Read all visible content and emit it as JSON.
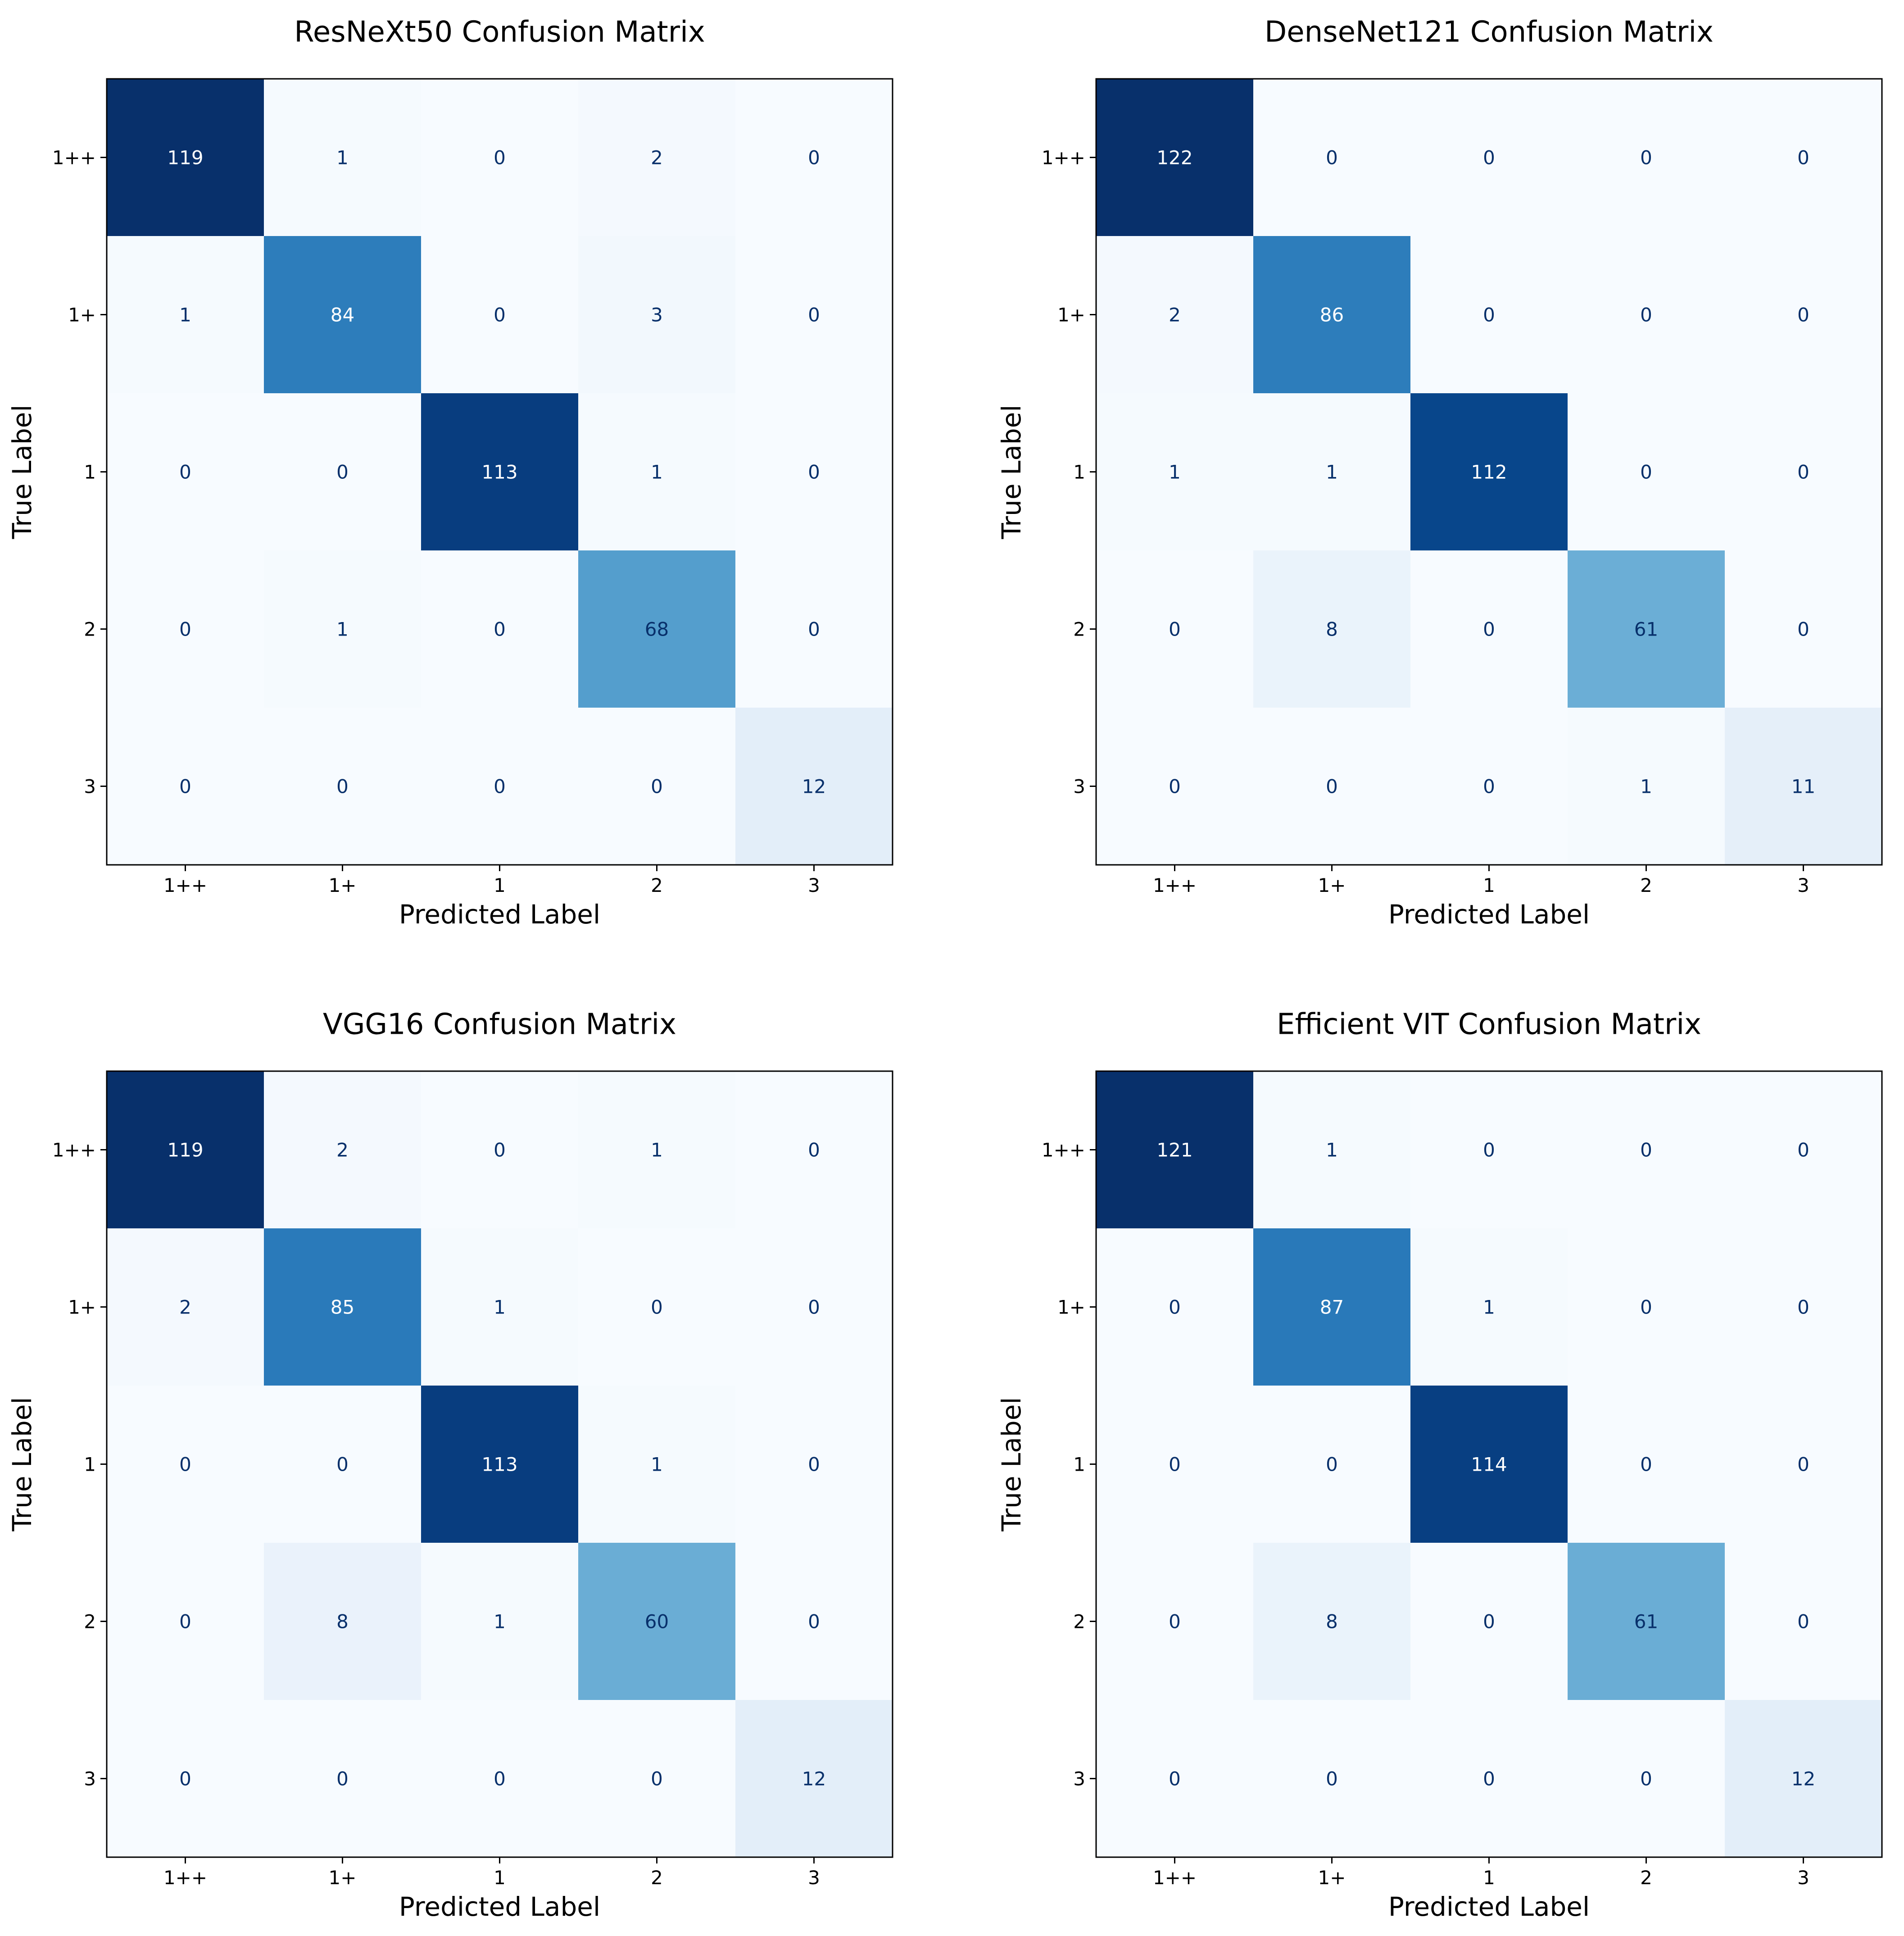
{
  "chart_data": [
    {
      "type": "heatmap",
      "title": "ResNeXt50 Confusion Matrix",
      "xlabel": "Predicted Label",
      "ylabel": "True Label",
      "x_categories": [
        "1++",
        "1+",
        "1",
        "2",
        "3"
      ],
      "y_categories": [
        "1++",
        "1+",
        "1",
        "2",
        "3"
      ],
      "matrix": [
        [
          119,
          1,
          0,
          2,
          0
        ],
        [
          1,
          84,
          0,
          3,
          0
        ],
        [
          0,
          0,
          113,
          1,
          0
        ],
        [
          0,
          1,
          0,
          68,
          0
        ],
        [
          0,
          0,
          0,
          0,
          12
        ]
      ],
      "colormap": "Blues"
    },
    {
      "type": "heatmap",
      "title": "DenseNet121 Confusion Matrix",
      "xlabel": "Predicted Label",
      "ylabel": "True Label",
      "x_categories": [
        "1++",
        "1+",
        "1",
        "2",
        "3"
      ],
      "y_categories": [
        "1++",
        "1+",
        "1",
        "2",
        "3"
      ],
      "matrix": [
        [
          122,
          0,
          0,
          0,
          0
        ],
        [
          2,
          86,
          0,
          0,
          0
        ],
        [
          1,
          1,
          112,
          0,
          0
        ],
        [
          0,
          8,
          0,
          61,
          0
        ],
        [
          0,
          0,
          0,
          1,
          11
        ]
      ],
      "colormap": "Blues"
    },
    {
      "type": "heatmap",
      "title": "VGG16 Confusion Matrix",
      "xlabel": "Predicted Label",
      "ylabel": "True Label",
      "x_categories": [
        "1++",
        "1+",
        "1",
        "2",
        "3"
      ],
      "y_categories": [
        "1++",
        "1+",
        "1",
        "2",
        "3"
      ],
      "matrix": [
        [
          119,
          2,
          0,
          1,
          0
        ],
        [
          2,
          85,
          1,
          0,
          0
        ],
        [
          0,
          0,
          113,
          1,
          0
        ],
        [
          0,
          8,
          1,
          60,
          0
        ],
        [
          0,
          0,
          0,
          0,
          12
        ]
      ],
      "colormap": "Blues"
    },
    {
      "type": "heatmap",
      "title": "Efficient VIT Confusion Matrix",
      "xlabel": "Predicted Label",
      "ylabel": "True Label",
      "x_categories": [
        "1++",
        "1+",
        "1",
        "2",
        "3"
      ],
      "y_categories": [
        "1++",
        "1+",
        "1",
        "2",
        "3"
      ],
      "matrix": [
        [
          121,
          1,
          0,
          0,
          0
        ],
        [
          0,
          87,
          1,
          0,
          0
        ],
        [
          0,
          0,
          114,
          0,
          0
        ],
        [
          0,
          8,
          0,
          61,
          0
        ],
        [
          0,
          0,
          0,
          0,
          12
        ]
      ],
      "colormap": "Blues"
    }
  ]
}
